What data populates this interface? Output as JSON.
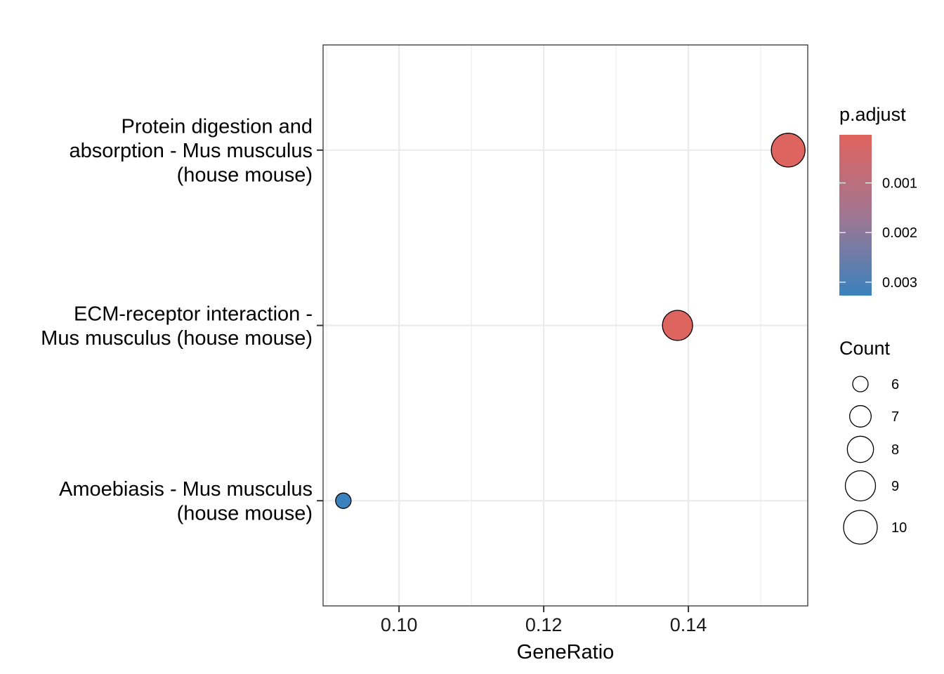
{
  "chart_data": {
    "type": "scatter",
    "title": "",
    "xlabel": "GeneRatio",
    "ylabel": "",
    "xlim": [
      0.0895,
      0.1565
    ],
    "x_ticks": [
      0.1,
      0.12,
      0.14
    ],
    "x_tick_labels": [
      "0.10",
      "0.12",
      "0.14"
    ],
    "grid": true,
    "categories": [
      {
        "lines": [
          "Protein digestion and",
          "absorption - Mus musculus",
          "(house mouse)"
        ]
      },
      {
        "lines": [
          "ECM-receptor interaction -",
          "Mus musculus (house mouse)"
        ]
      },
      {
        "lines": [
          "Amoebiasis - Mus musculus",
          "(house mouse)"
        ]
      }
    ],
    "points": [
      {
        "category_index": 0,
        "x": 0.1538,
        "count": 10,
        "p_adjust": 8e-05
      },
      {
        "category_index": 1,
        "x": 0.1385,
        "count": 9,
        "p_adjust": 8e-05
      },
      {
        "category_index": 2,
        "x": 0.0923,
        "count": 6,
        "p_adjust": 0.0033
      }
    ],
    "color_legend": {
      "title": "p.adjust",
      "ticks": [
        0.001,
        0.002,
        0.003
      ],
      "tick_labels": [
        "0.001",
        "0.002",
        "0.003"
      ],
      "range": [
        3e-05,
        0.00327
      ],
      "low_color": "#e0635e",
      "high_color": "#3a82be"
    },
    "size_legend": {
      "title": "Count",
      "values": [
        6,
        7,
        8,
        9,
        10
      ],
      "labels": [
        "6",
        "7",
        "8",
        "9",
        "10"
      ]
    },
    "legend_position": "right"
  }
}
